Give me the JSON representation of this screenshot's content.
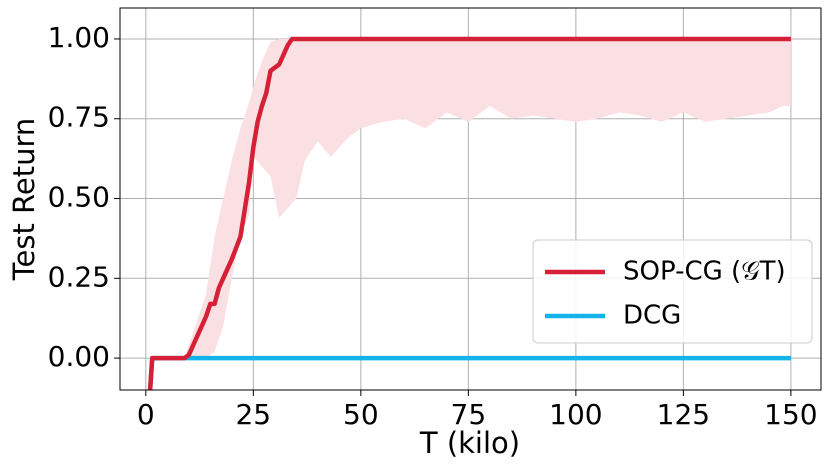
{
  "chart_data": {
    "type": "line",
    "xlabel": "T (kilo)",
    "ylabel": "Test Return",
    "xlim": [
      -6,
      157
    ],
    "ylim": [
      -0.1,
      1.097
    ],
    "xticks": [
      0,
      25,
      50,
      75,
      100,
      125,
      150
    ],
    "yticks": [
      {
        "value": 0,
        "label": "0.00"
      },
      {
        "value": 0.25,
        "label": "0.25"
      },
      {
        "value": 0.5,
        "label": "0.50"
      },
      {
        "value": 0.75,
        "label": "0.75"
      },
      {
        "value": 1,
        "label": "1.00"
      }
    ],
    "grid": true,
    "legend": "lower right",
    "band": {
      "color": "#fadfe3",
      "x": [
        9,
        14,
        16,
        18,
        20,
        22,
        24,
        25,
        27,
        29,
        31,
        33,
        35,
        37,
        40,
        43,
        47,
        50,
        55,
        60,
        65,
        70,
        75,
        80,
        85,
        90,
        95,
        100,
        105,
        110,
        115,
        120,
        125,
        130,
        135,
        140,
        145,
        148,
        150
      ],
      "lower": [
        0,
        0,
        0.02,
        0.1,
        0.25,
        0.38,
        0.45,
        0.63,
        0.6,
        0.57,
        0.44,
        0.47,
        0.5,
        0.62,
        0.68,
        0.63,
        0.69,
        0.72,
        0.74,
        0.75,
        0.72,
        0.77,
        0.74,
        0.79,
        0.75,
        0.76,
        0.75,
        0.74,
        0.75,
        0.77,
        0.76,
        0.74,
        0.77,
        0.74,
        0.75,
        0.76,
        0.77,
        0.79,
        0.79
      ],
      "upper": [
        0,
        0.2,
        0.38,
        0.5,
        0.62,
        0.72,
        0.8,
        0.85,
        0.93,
        0.99,
        1,
        1,
        1,
        1,
        1,
        1,
        1,
        1,
        1,
        1,
        1,
        1,
        1,
        1,
        1,
        1,
        1,
        1,
        1,
        1,
        1,
        1,
        1,
        1,
        1,
        1,
        1,
        1,
        1
      ]
    },
    "series": [
      {
        "name": "SOP-CG (𝒢T)",
        "color": "#d62035",
        "x": [
          1,
          1.5,
          5,
          9,
          10,
          12,
          14,
          15,
          16,
          17,
          18,
          20,
          22,
          24,
          25,
          26,
          27,
          28,
          29,
          31,
          32,
          33,
          34,
          35,
          150
        ],
        "values": [
          -0.1,
          0,
          0,
          0,
          0.01,
          0.07,
          0.13,
          0.17,
          0.17,
          0.22,
          0.25,
          0.31,
          0.38,
          0.55,
          0.66,
          0.74,
          0.79,
          0.83,
          0.9,
          0.92,
          0.95,
          0.98,
          1,
          1,
          1
        ]
      },
      {
        "name": "DCG",
        "color": "#14b4ea",
        "x": [
          1,
          1.5,
          150
        ],
        "values": [
          -0.1,
          0,
          0
        ]
      }
    ]
  }
}
